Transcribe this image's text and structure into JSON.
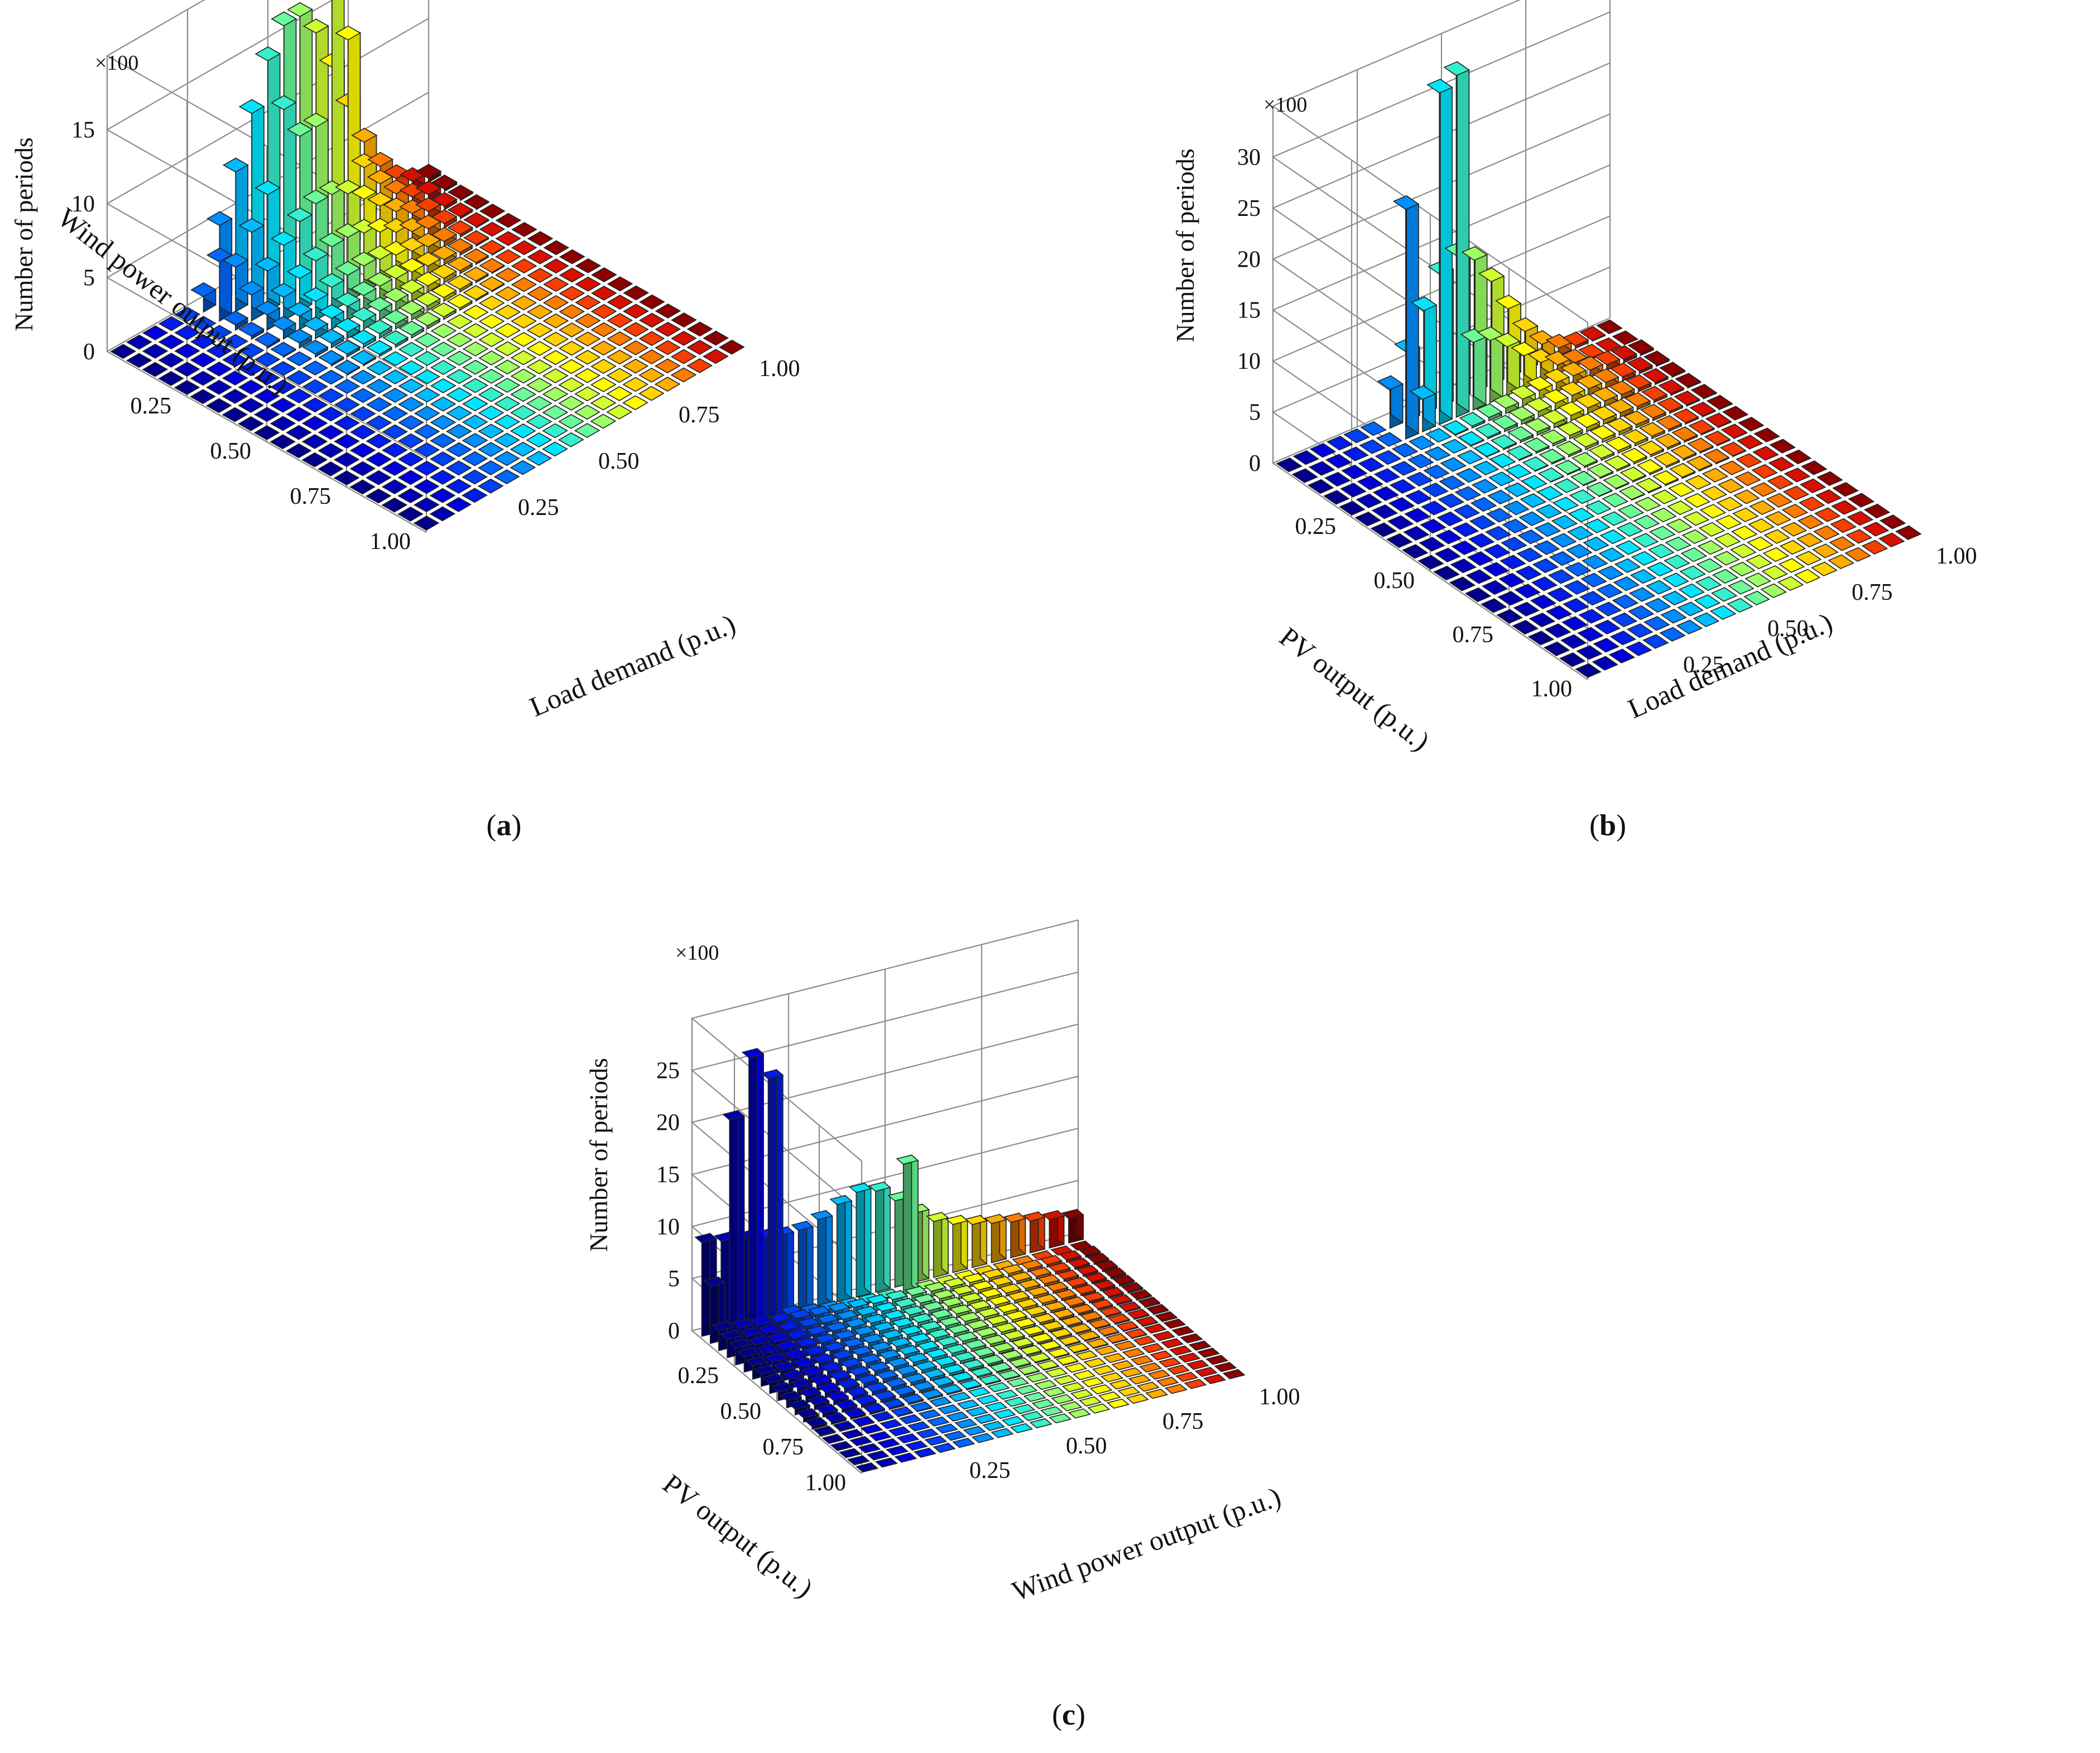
{
  "chart_data": [
    {
      "type": "3d-bar-histogram",
      "panel_label": "(a)",
      "panel_letter": "a",
      "x_label": "Wind power output (p.u.)",
      "y_label": "Load demand (p.u.)",
      "z_label": "Number of periods",
      "z_multiplier": "×100",
      "x_ticks": [
        "0.25",
        "0.50",
        "0.75",
        "1.00"
      ],
      "y_ticks": [
        "0.25",
        "0.50",
        "0.75",
        "1.00"
      ],
      "z_ticks": [
        "0",
        "5",
        "10",
        "15"
      ],
      "z_max": 20,
      "grid_size": 20,
      "peak_values": [
        {
          "wind_bin": 1,
          "load_bin": 12,
          "value": 18.5
        },
        {
          "wind_bin": 1,
          "load_bin": 13,
          "value": 14.0
        },
        {
          "wind_bin": 1,
          "load_bin": 9,
          "value": 11.8
        },
        {
          "wind_bin": 1,
          "load_bin": 5,
          "value": 4.0
        }
      ]
    },
    {
      "type": "3d-bar-histogram",
      "panel_label": "(b)",
      "panel_letter": "b",
      "x_label": "PV output (p.u.)",
      "y_label": "Load demand (p.u.)",
      "z_label": "Number of periods",
      "z_multiplier": "×100",
      "x_ticks": [
        "0.25",
        "0.50",
        "0.75",
        "1.00"
      ],
      "y_ticks": [
        "0.25",
        "0.50",
        "0.75",
        "1.00"
      ],
      "z_ticks": [
        "0",
        "5",
        "10",
        "15",
        "20",
        "25",
        "30"
      ],
      "z_max": 35,
      "grid_size": 20,
      "peak_values": [
        {
          "pv_bin": 1,
          "load_bin": 9,
          "value": 33.5
        },
        {
          "pv_bin": 1,
          "load_bin": 8,
          "value": 32.5
        },
        {
          "pv_bin": 1,
          "load_bin": 6,
          "value": 22.5
        }
      ]
    },
    {
      "type": "3d-bar-histogram",
      "panel_label": "(c)",
      "panel_letter": "c",
      "x_label": "PV output (p.u.)",
      "y_label": "Wind power output (p.u.)",
      "z_label": "Number of periods",
      "z_multiplier": "×100",
      "x_ticks": [
        "0.25",
        "0.50",
        "0.75",
        "1.00"
      ],
      "y_ticks": [
        "0.25",
        "0.50",
        "0.75",
        "1.00"
      ],
      "z_ticks": [
        "0",
        "5",
        "10",
        "15",
        "20",
        "25"
      ],
      "z_max": 30,
      "grid_size": 20,
      "peak_values": [
        {
          "pv_bin": 1,
          "wind_bin": 2,
          "value": 26.5
        },
        {
          "pv_bin": 1,
          "wind_bin": 1,
          "value": 21.0
        },
        {
          "pv_bin": 1,
          "wind_bin": 3,
          "value": 24.0
        },
        {
          "pv_bin": 1,
          "wind_bin": 10,
          "value": 12.5
        }
      ]
    }
  ]
}
